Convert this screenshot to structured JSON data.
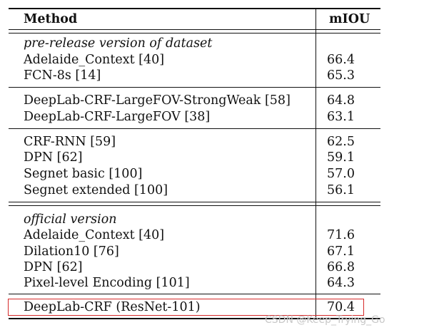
{
  "header": {
    "method": "Method",
    "miou": "mIOU"
  },
  "groups": [
    {
      "caption": "pre-release version of dataset",
      "rows": [
        {
          "method": "Adelaide_Context [40]",
          "miou": "66.4"
        },
        {
          "method": "FCN-8s [14]",
          "miou": "65.3"
        }
      ]
    },
    {
      "rows": [
        {
          "method": "DeepLab-CRF-LargeFOV-StrongWeak [58]",
          "miou": "64.8"
        },
        {
          "method": "DeepLab-CRF-LargeFOV [38]",
          "miou": "63.1"
        }
      ]
    },
    {
      "rows": [
        {
          "method": "CRF-RNN [59]",
          "miou": "62.5"
        },
        {
          "method": "DPN [62]",
          "miou": "59.1"
        },
        {
          "method": "Segnet basic [100]",
          "miou": "57.0"
        },
        {
          "method": "Segnet extended [100]",
          "miou": "56.1"
        }
      ]
    },
    {
      "caption": "official version",
      "rows": [
        {
          "method": "Adelaide_Context [40]",
          "miou": "71.6"
        },
        {
          "method": "Dilation10 [76]",
          "miou": "67.1"
        },
        {
          "method": "DPN [62]",
          "miou": "66.8"
        },
        {
          "method": "Pixel-level Encoding [101]",
          "miou": "64.3"
        }
      ]
    },
    {
      "rows": [
        {
          "method": "DeepLab-CRF (ResNet-101)",
          "miou": "70.4"
        }
      ]
    }
  ],
  "highlight_color": "#d62a2a",
  "watermark": "CSDN @Keep_Trying_Go"
}
